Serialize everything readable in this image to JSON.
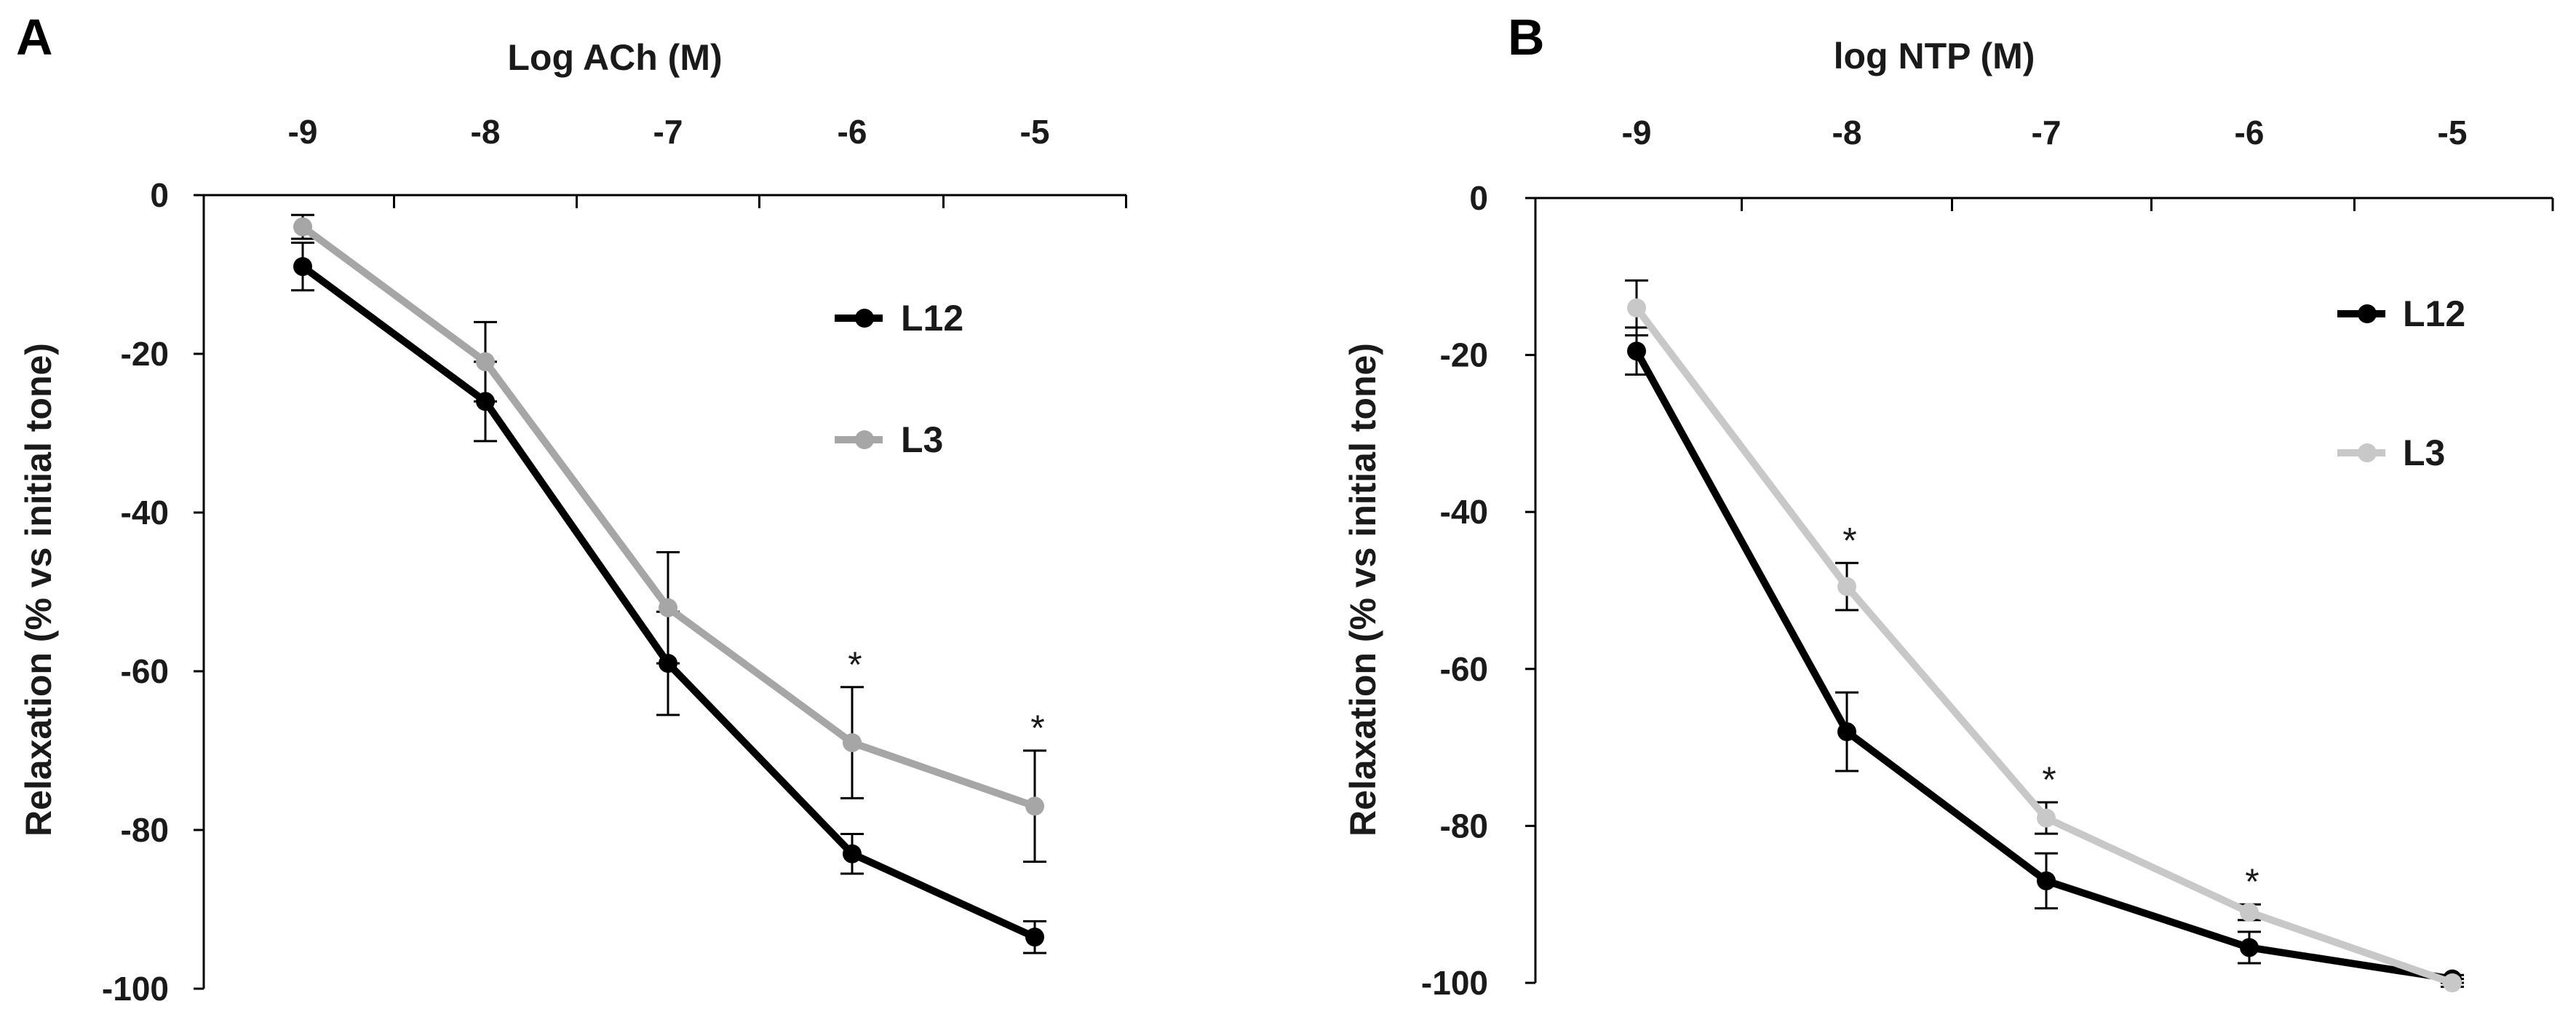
{
  "chart_data": [
    {
      "type": "line",
      "panel": "A",
      "xlabel": "Log ACh (M)",
      "ylabel": "Relaxation (% vs initial tone)",
      "x": [
        -9,
        -8,
        -7,
        -6,
        -5
      ],
      "x_tick_labels": [
        "-9",
        "-8",
        "-7",
        "-6",
        "-5"
      ],
      "y_tick_labels": [
        "0",
        "-20",
        "-40",
        "-60",
        "-80",
        "-100"
      ],
      "ylim": [
        -100,
        0
      ],
      "series": [
        {
          "name": "L12",
          "color": "#000000",
          "values": [
            -9,
            -26,
            -59,
            -83,
            -93.5
          ],
          "errors": [
            3,
            5,
            6.5,
            2.5,
            2
          ]
        },
        {
          "name": "L3",
          "color": "#a6a6a6",
          "values": [
            -4,
            -21,
            -52,
            -69,
            -77
          ],
          "errors": [
            1.5,
            5,
            7,
            7,
            7
          ]
        }
      ],
      "significance_marker": "*",
      "significant_x": [
        -6,
        -5
      ],
      "grid": false,
      "legend_position": "right"
    },
    {
      "type": "line",
      "panel": "B",
      "xlabel": "log NTP (M)",
      "ylabel": "Relaxation (% vs initial tone)",
      "x": [
        -9,
        -8,
        -7,
        -6,
        -5
      ],
      "x_tick_labels": [
        "-9",
        "-8",
        "-7",
        "-6",
        "-5"
      ],
      "y_tick_labels": [
        "0",
        "-20",
        "-40",
        "-60",
        "-80",
        "-100"
      ],
      "ylim": [
        -100,
        0
      ],
      "series": [
        {
          "name": "L12",
          "color": "#000000",
          "values": [
            -19.5,
            -68,
            -87,
            -95.5,
            -99.5
          ],
          "errors": [
            3,
            5,
            3.5,
            2,
            0.5
          ]
        },
        {
          "name": "L3",
          "color": "#c8c8c8",
          "values": [
            -14,
            -49.5,
            -79,
            -91,
            -100
          ],
          "errors": [
            3.5,
            3,
            2,
            1,
            0.5
          ]
        }
      ],
      "significance_marker": "*",
      "significant_x": [
        -8,
        -7,
        -6
      ],
      "grid": false,
      "legend_position": "right"
    }
  ]
}
